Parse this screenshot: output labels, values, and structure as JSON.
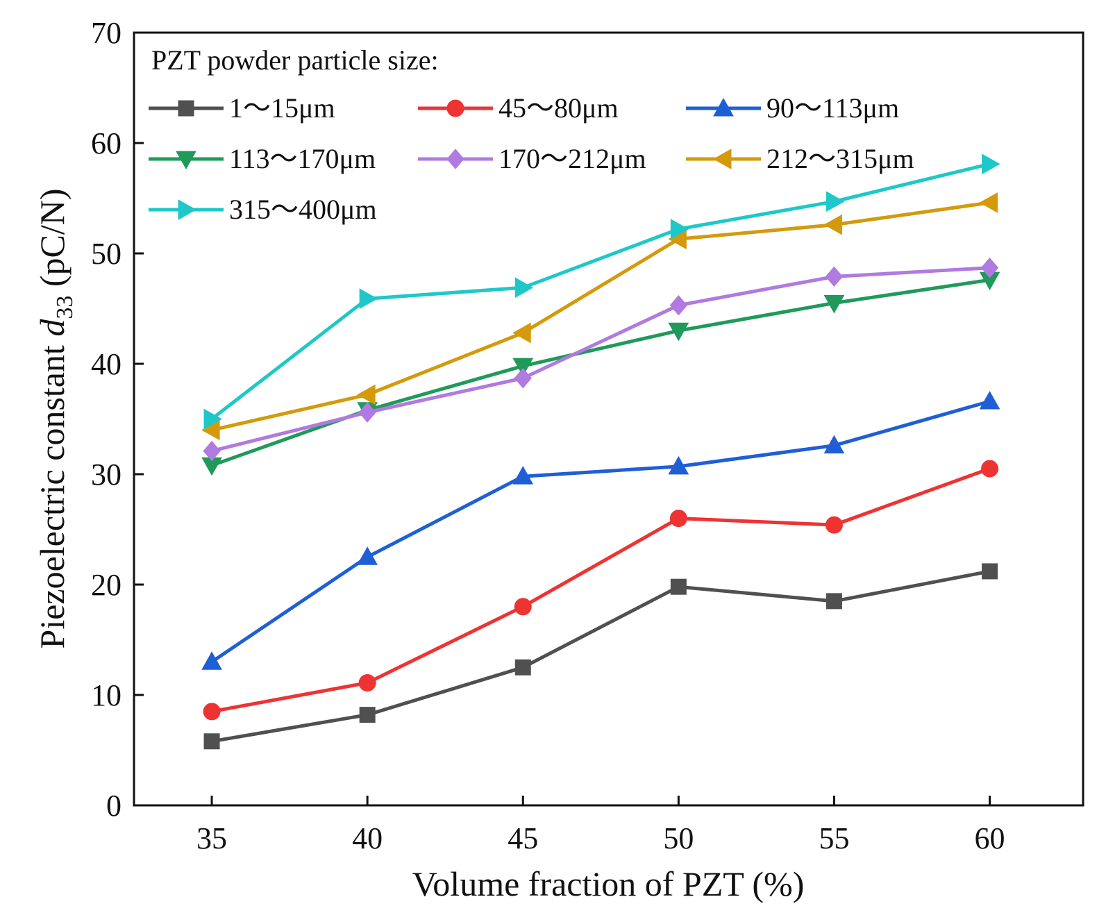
{
  "chart_data": {
    "type": "line",
    "title": "",
    "xlabel": "Volume fraction of PZT  (%)",
    "ylabel": {
      "prefix": "Piezoelectric constant ",
      "symbol": "d",
      "subscript": "33",
      "suffix": " (pC/N)"
    },
    "x": [
      35,
      40,
      45,
      50,
      55,
      60
    ],
    "x_ticks": [
      "35",
      "40",
      "45",
      "50",
      "55",
      "60"
    ],
    "y_ticks": [
      "0",
      "10",
      "20",
      "30",
      "40",
      "50",
      "60",
      "70"
    ],
    "xlim": [
      32.5,
      63
    ],
    "ylim": [
      0,
      70
    ],
    "grid": false,
    "legend": {
      "title": "PZT powder particle size:",
      "placement": "top-left"
    },
    "series": [
      {
        "name": "1～15μm",
        "color": "#505050",
        "marker": "square",
        "values": [
          5.8,
          8.2,
          12.5,
          19.8,
          18.5,
          21.2
        ]
      },
      {
        "name": "45～80μm",
        "color": "#ee3333",
        "marker": "circle",
        "values": [
          8.5,
          11.1,
          18.0,
          26.0,
          25.4,
          30.5
        ]
      },
      {
        "name": "90～113μm",
        "color": "#1f5fd6",
        "marker": "triangle-up",
        "values": [
          13.0,
          22.5,
          29.8,
          30.7,
          32.6,
          36.6
        ]
      },
      {
        "name": "113～170μm",
        "color": "#1f9a5a",
        "marker": "triangle-down",
        "values": [
          30.8,
          35.8,
          39.8,
          43.0,
          45.5,
          47.6
        ]
      },
      {
        "name": "170～212μm",
        "color": "#b07ae0",
        "marker": "diamond",
        "values": [
          32.1,
          35.6,
          38.7,
          45.3,
          47.9,
          48.7
        ]
      },
      {
        "name": "212～315μm",
        "color": "#d49a0c",
        "marker": "triangle-left",
        "values": [
          34.0,
          37.2,
          42.8,
          51.3,
          52.6,
          54.6
        ]
      },
      {
        "name": "315～400μm",
        "color": "#1fc8c8",
        "marker": "triangle-right",
        "values": [
          35.0,
          45.9,
          46.9,
          52.2,
          54.7,
          58.1
        ]
      }
    ]
  }
}
